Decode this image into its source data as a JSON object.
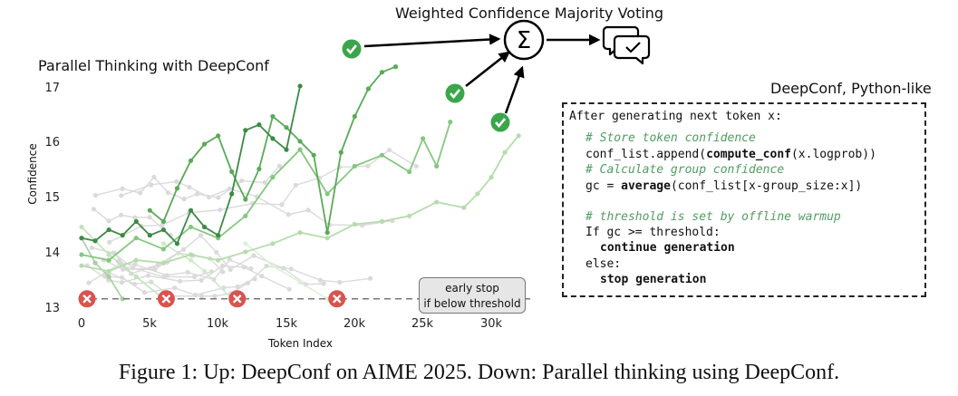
{
  "plot": {
    "title": "Parallel Thinking with DeepConf",
    "ylabel": "Confidence",
    "xlabel": "Token Index",
    "y_ticks": [
      "13",
      "14",
      "15",
      "16",
      "17"
    ],
    "x_ticks": [
      "0",
      "5k",
      "10k",
      "15k",
      "20k",
      "25k",
      "30k"
    ],
    "early_stop_line1": "early stop",
    "early_stop_line2": "if below threshold"
  },
  "chart_data": {
    "type": "line",
    "title": "Parallel Thinking with DeepConf",
    "xlabel": "Token Index",
    "ylabel": "Confidence",
    "xlim": [
      0,
      32000
    ],
    "ylim": [
      13,
      17.2
    ],
    "threshold": 13.2,
    "kept_series": [
      {
        "color": "#3c8a46",
        "x": [
          0,
          1000,
          2000,
          3000,
          4000,
          5000,
          6000,
          7000,
          8000,
          9000,
          10000,
          11000,
          12000,
          13000,
          14000,
          15000,
          16000
        ],
        "y": [
          14.3,
          14.25,
          14.45,
          14.35,
          14.6,
          14.35,
          14.45,
          14.2,
          14.8,
          14.5,
          14.35,
          15.1,
          16.25,
          16.35,
          16.1,
          15.9,
          17.05
        ]
      },
      {
        "color": "#5aaa57",
        "x": [
          5000,
          6000,
          7000,
          8000,
          9000,
          10000,
          11000,
          12000,
          13000,
          14000,
          15000,
          16000,
          17000,
          18000,
          19000,
          20000,
          21000,
          22000,
          23000
        ],
        "y": [
          14.8,
          14.6,
          15.2,
          15.7,
          16.0,
          16.15,
          15.5,
          15.0,
          15.55,
          16.5,
          16.3,
          16.05,
          15.8,
          14.4,
          15.85,
          16.5,
          17.0,
          17.3,
          17.4
        ]
      },
      {
        "color": "#86c780",
        "x": [
          0,
          2000,
          4000,
          6000,
          8000,
          10000,
          12000,
          14000,
          16000,
          18000,
          20000,
          22000,
          24000,
          25000,
          26000,
          27000
        ],
        "y": [
          14.0,
          13.9,
          14.3,
          14.1,
          14.5,
          14.3,
          14.7,
          15.4,
          15.9,
          15.1,
          15.6,
          15.8,
          15.5,
          16.1,
          15.6,
          16.4
        ]
      },
      {
        "color": "#b5dcac",
        "x": [
          0,
          2000,
          4000,
          6000,
          8000,
          10000,
          12000,
          14000,
          16000,
          18000,
          20000,
          22000,
          24000,
          26000,
          28000,
          29000,
          30000,
          31000,
          32000
        ],
        "y": [
          13.8,
          13.7,
          13.9,
          13.85,
          14.0,
          13.9,
          14.05,
          14.2,
          14.4,
          14.3,
          14.55,
          14.6,
          14.7,
          14.95,
          14.85,
          15.1,
          15.4,
          15.85,
          16.15
        ]
      }
    ],
    "stopped_series": [
      {
        "color": "#a3d19b",
        "x": [
          0,
          1000,
          2000,
          3000
        ],
        "y": [
          14.3,
          13.85,
          13.6,
          13.2
        ]
      },
      {
        "color": "#c2e3bb",
        "x": [
          0,
          2000,
          4000,
          6000
        ],
        "y": [
          14.5,
          14.0,
          13.6,
          13.2
        ]
      },
      {
        "color": "#cfe9c9",
        "x": [
          6000,
          8000,
          9000,
          11000
        ],
        "y": [
          14.2,
          13.9,
          13.7,
          13.2
        ]
      },
      {
        "color": "#dcefd7",
        "x": [
          12000,
          14000,
          16000,
          18000
        ],
        "y": [
          14.2,
          13.8,
          13.5,
          13.2
        ]
      }
    ],
    "stop_marks_x": [
      400,
      6200,
      11400,
      18700
    ],
    "background_series_count": 12
  },
  "voting": {
    "title": "Weighted Confidence Majority Voting",
    "sigma": "Σ"
  },
  "code": {
    "title": "DeepConf, Python-like",
    "line1": "After generating next token x:",
    "c1": "# Store token confidence",
    "line2a": "conf_list.append(",
    "line2b": "compute_conf",
    "line2c": "(x.logprob))",
    "c2": "# Calculate group confidence",
    "line3a": "gc = ",
    "line3b": "average",
    "line3c": "(conf_list[x-group_size:x])",
    "c3": "# threshold is set by offline warmup",
    "line4": "If gc >= threshold:",
    "line5": "continue generation",
    "line6": "else:",
    "line7": "stop generation"
  },
  "caption": "Figure 1: Up: DeepConf on AIME 2025. Down: Parallel thinking using DeepConf.",
  "colors": {
    "check": "#3ba54a",
    "cross": "#d9534f",
    "threshold": "#777777"
  }
}
